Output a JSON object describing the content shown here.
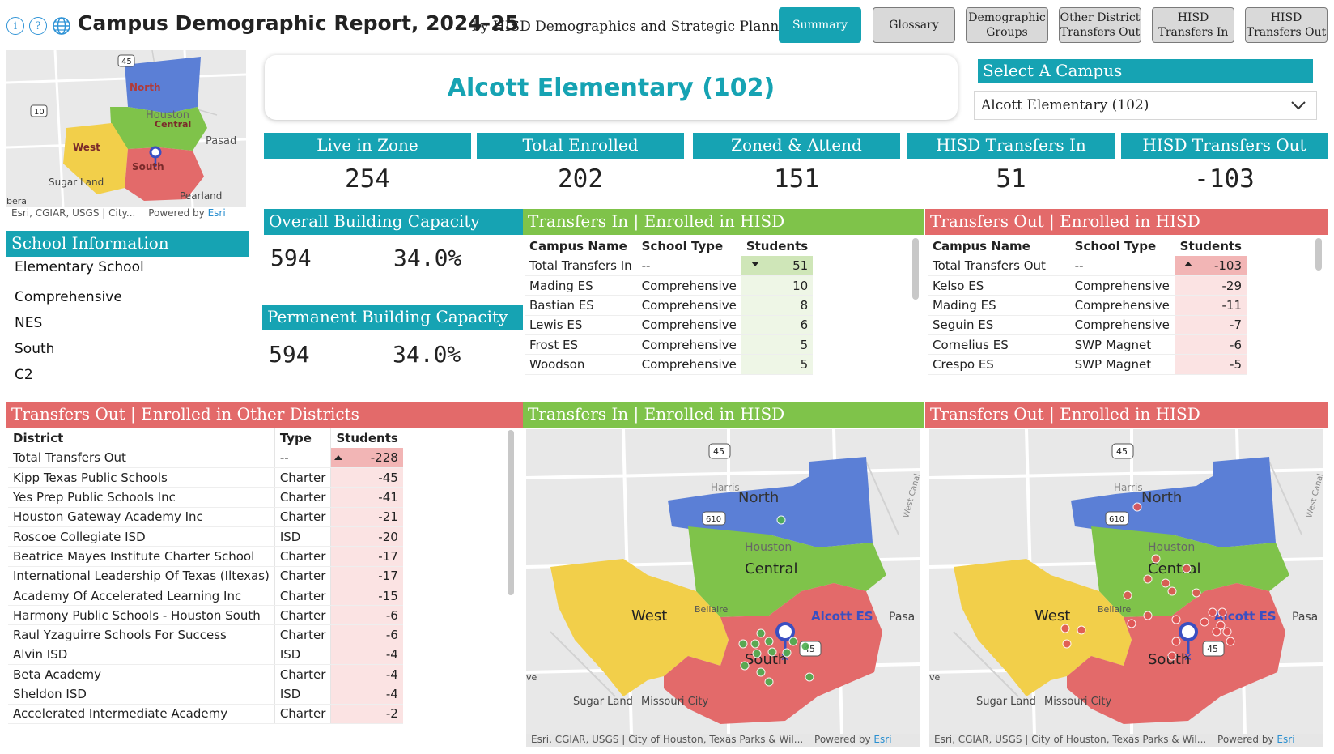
{
  "header": {
    "title": "Campus Demographic Report, 2024-25",
    "subtitle": "by HISD Demographics and Strategic Planning",
    "icons": [
      "info-icon",
      "help-icon",
      "globe-icon"
    ],
    "nav": [
      {
        "label": "Summary",
        "active": true
      },
      {
        "label": "Glossary"
      },
      {
        "label": "Demographic Groups"
      },
      {
        "label": "Other District Transfers Out"
      },
      {
        "label": "HISD Transfers In"
      },
      {
        "label": "HISD Transfers Out"
      }
    ]
  },
  "campus": {
    "name": "Alcott Elementary (102)",
    "select_label": "Select A Campus",
    "selected": "Alcott Elementary (102)"
  },
  "mini_map": {
    "labels": {
      "north": "North",
      "houston": "Houston",
      "central": "Central",
      "west": "West",
      "south": "South",
      "pasad": "Pasad",
      "sugar": "Sugar Land",
      "pearland": "Pearland",
      "bera": "bera",
      "hwy45": "45",
      "hwy10": "10"
    },
    "attribution": "Esri, CGIAR, USGS | City...",
    "powered": "Powered by",
    "esri": "Esri"
  },
  "school_info": {
    "heading": "School Information",
    "lines": [
      "Elementary School",
      "Comprehensive",
      "NES",
      "South",
      "C2"
    ]
  },
  "kpis": [
    {
      "label": "Live in Zone",
      "value": "254"
    },
    {
      "label": "Total Enrolled",
      "value": "202"
    },
    {
      "label": "Zoned & Attend",
      "value": "151"
    },
    {
      "label": "HISD Transfers In",
      "value": "51"
    },
    {
      "label": "HISD Transfers Out",
      "value": "-103"
    }
  ],
  "capacity": {
    "overall_label": "Overall Building Capacity",
    "overall_value": "594",
    "overall_pct": "34.0%",
    "permanent_label": "Permanent Building Capacity",
    "permanent_value": "594",
    "permanent_pct": "34.0%"
  },
  "transfers_in": {
    "heading": "Transfers In | Enrolled in HISD",
    "columns": [
      "Campus Name",
      "School Type",
      "Students"
    ],
    "rows": [
      [
        "Total Transfers In",
        "--",
        "51"
      ],
      [
        "Mading ES",
        "Comprehensive",
        "10"
      ],
      [
        "Bastian ES",
        "Comprehensive",
        "8"
      ],
      [
        "Lewis ES",
        "Comprehensive",
        "6"
      ],
      [
        "Frost ES",
        "Comprehensive",
        "5"
      ],
      [
        "Woodson",
        "Comprehensive",
        "5"
      ]
    ]
  },
  "transfers_out": {
    "heading": "Transfers Out | Enrolled in HISD",
    "columns": [
      "Campus Name",
      "School Type",
      "Students"
    ],
    "rows": [
      [
        "Total Transfers Out",
        "--",
        "-103"
      ],
      [
        "Kelso ES",
        "Comprehensive",
        "-29"
      ],
      [
        "Mading ES",
        "Comprehensive",
        "-11"
      ],
      [
        "Seguin ES",
        "Comprehensive",
        "-7"
      ],
      [
        "Cornelius ES",
        "SWP Magnet",
        "-6"
      ],
      [
        "Crespo ES",
        "SWP Magnet",
        "-5"
      ]
    ]
  },
  "other_districts": {
    "heading": "Transfers Out | Enrolled in Other Districts",
    "columns": [
      "District",
      "Type",
      "Students"
    ],
    "rows": [
      [
        "Total Transfers Out",
        "--",
        "-228"
      ],
      [
        "Kipp Texas Public Schools",
        "Charter",
        "-45"
      ],
      [
        "Yes Prep Public Schools Inc",
        "Charter",
        "-41"
      ],
      [
        "Houston Gateway Academy Inc",
        "Charter",
        "-21"
      ],
      [
        "Roscoe Collegiate ISD",
        "ISD",
        "-20"
      ],
      [
        "Beatrice Mayes Institute Charter School",
        "Charter",
        "-17"
      ],
      [
        "International Leadership Of Texas (Iltexas)",
        "Charter",
        "-17"
      ],
      [
        "Academy Of Accelerated Learning Inc",
        "Charter",
        "-15"
      ],
      [
        "Harmony Public Schools - Houston South",
        "Charter",
        "-6"
      ],
      [
        "Raul Yzaguirre Schools For Success",
        "Charter",
        "-6"
      ],
      [
        "Alvin ISD",
        "ISD",
        "-4"
      ],
      [
        "Beta Academy",
        "Charter",
        "-4"
      ],
      [
        "Sheldon ISD",
        "ISD",
        "-4"
      ],
      [
        "Accelerated Intermediate Academy",
        "Charter",
        "-2"
      ]
    ]
  },
  "map_in": {
    "heading": "Transfers In | Enrolled in HISD",
    "attribution": "Esri, CGIAR, USGS | City of Houston, Texas Parks & Wil...",
    "powered": "Powered by",
    "esri": "Esri",
    "labels": {
      "north": "North",
      "central": "Central",
      "houston": "Houston",
      "west": "West",
      "south": "South",
      "harris": "Harris",
      "bellaire": "Bellaire",
      "pasa": "Pasa",
      "sugar": "Sugar Land",
      "missouri": "Missouri City",
      "alcott": "Alcott ES",
      "canal": "West Canal",
      "hwy45": "45",
      "hwy610": "610",
      "ve": "ve"
    },
    "dot_color": "#4caf50"
  },
  "map_out": {
    "heading": "Transfers Out | Enrolled in HISD",
    "attribution": "Esri, CGIAR, USGS | City of Houston, Texas Parks & Wil...",
    "powered": "Powered by",
    "esri": "Esri",
    "labels": {
      "north": "North",
      "central": "Central",
      "houston": "Houston",
      "west": "West",
      "south": "South",
      "harris": "Harris",
      "bellaire": "Bellaire",
      "pasa": "Pasa",
      "sugar": "Sugar Land",
      "missouri": "Missouri City",
      "alcott": "Alcott ES",
      "canal": "West Canal",
      "hwy45": "45",
      "hwy610": "610",
      "ve": "ve"
    },
    "dot_color": "#e05555"
  },
  "colors": {
    "teal": "#16a3b3",
    "green": "#7fc34a",
    "red": "#e36a6a",
    "north_region": "#5b7fd6",
    "central_region": "#7fc34a",
    "west_region": "#f2cf4a",
    "south_region": "#e36a6a"
  }
}
